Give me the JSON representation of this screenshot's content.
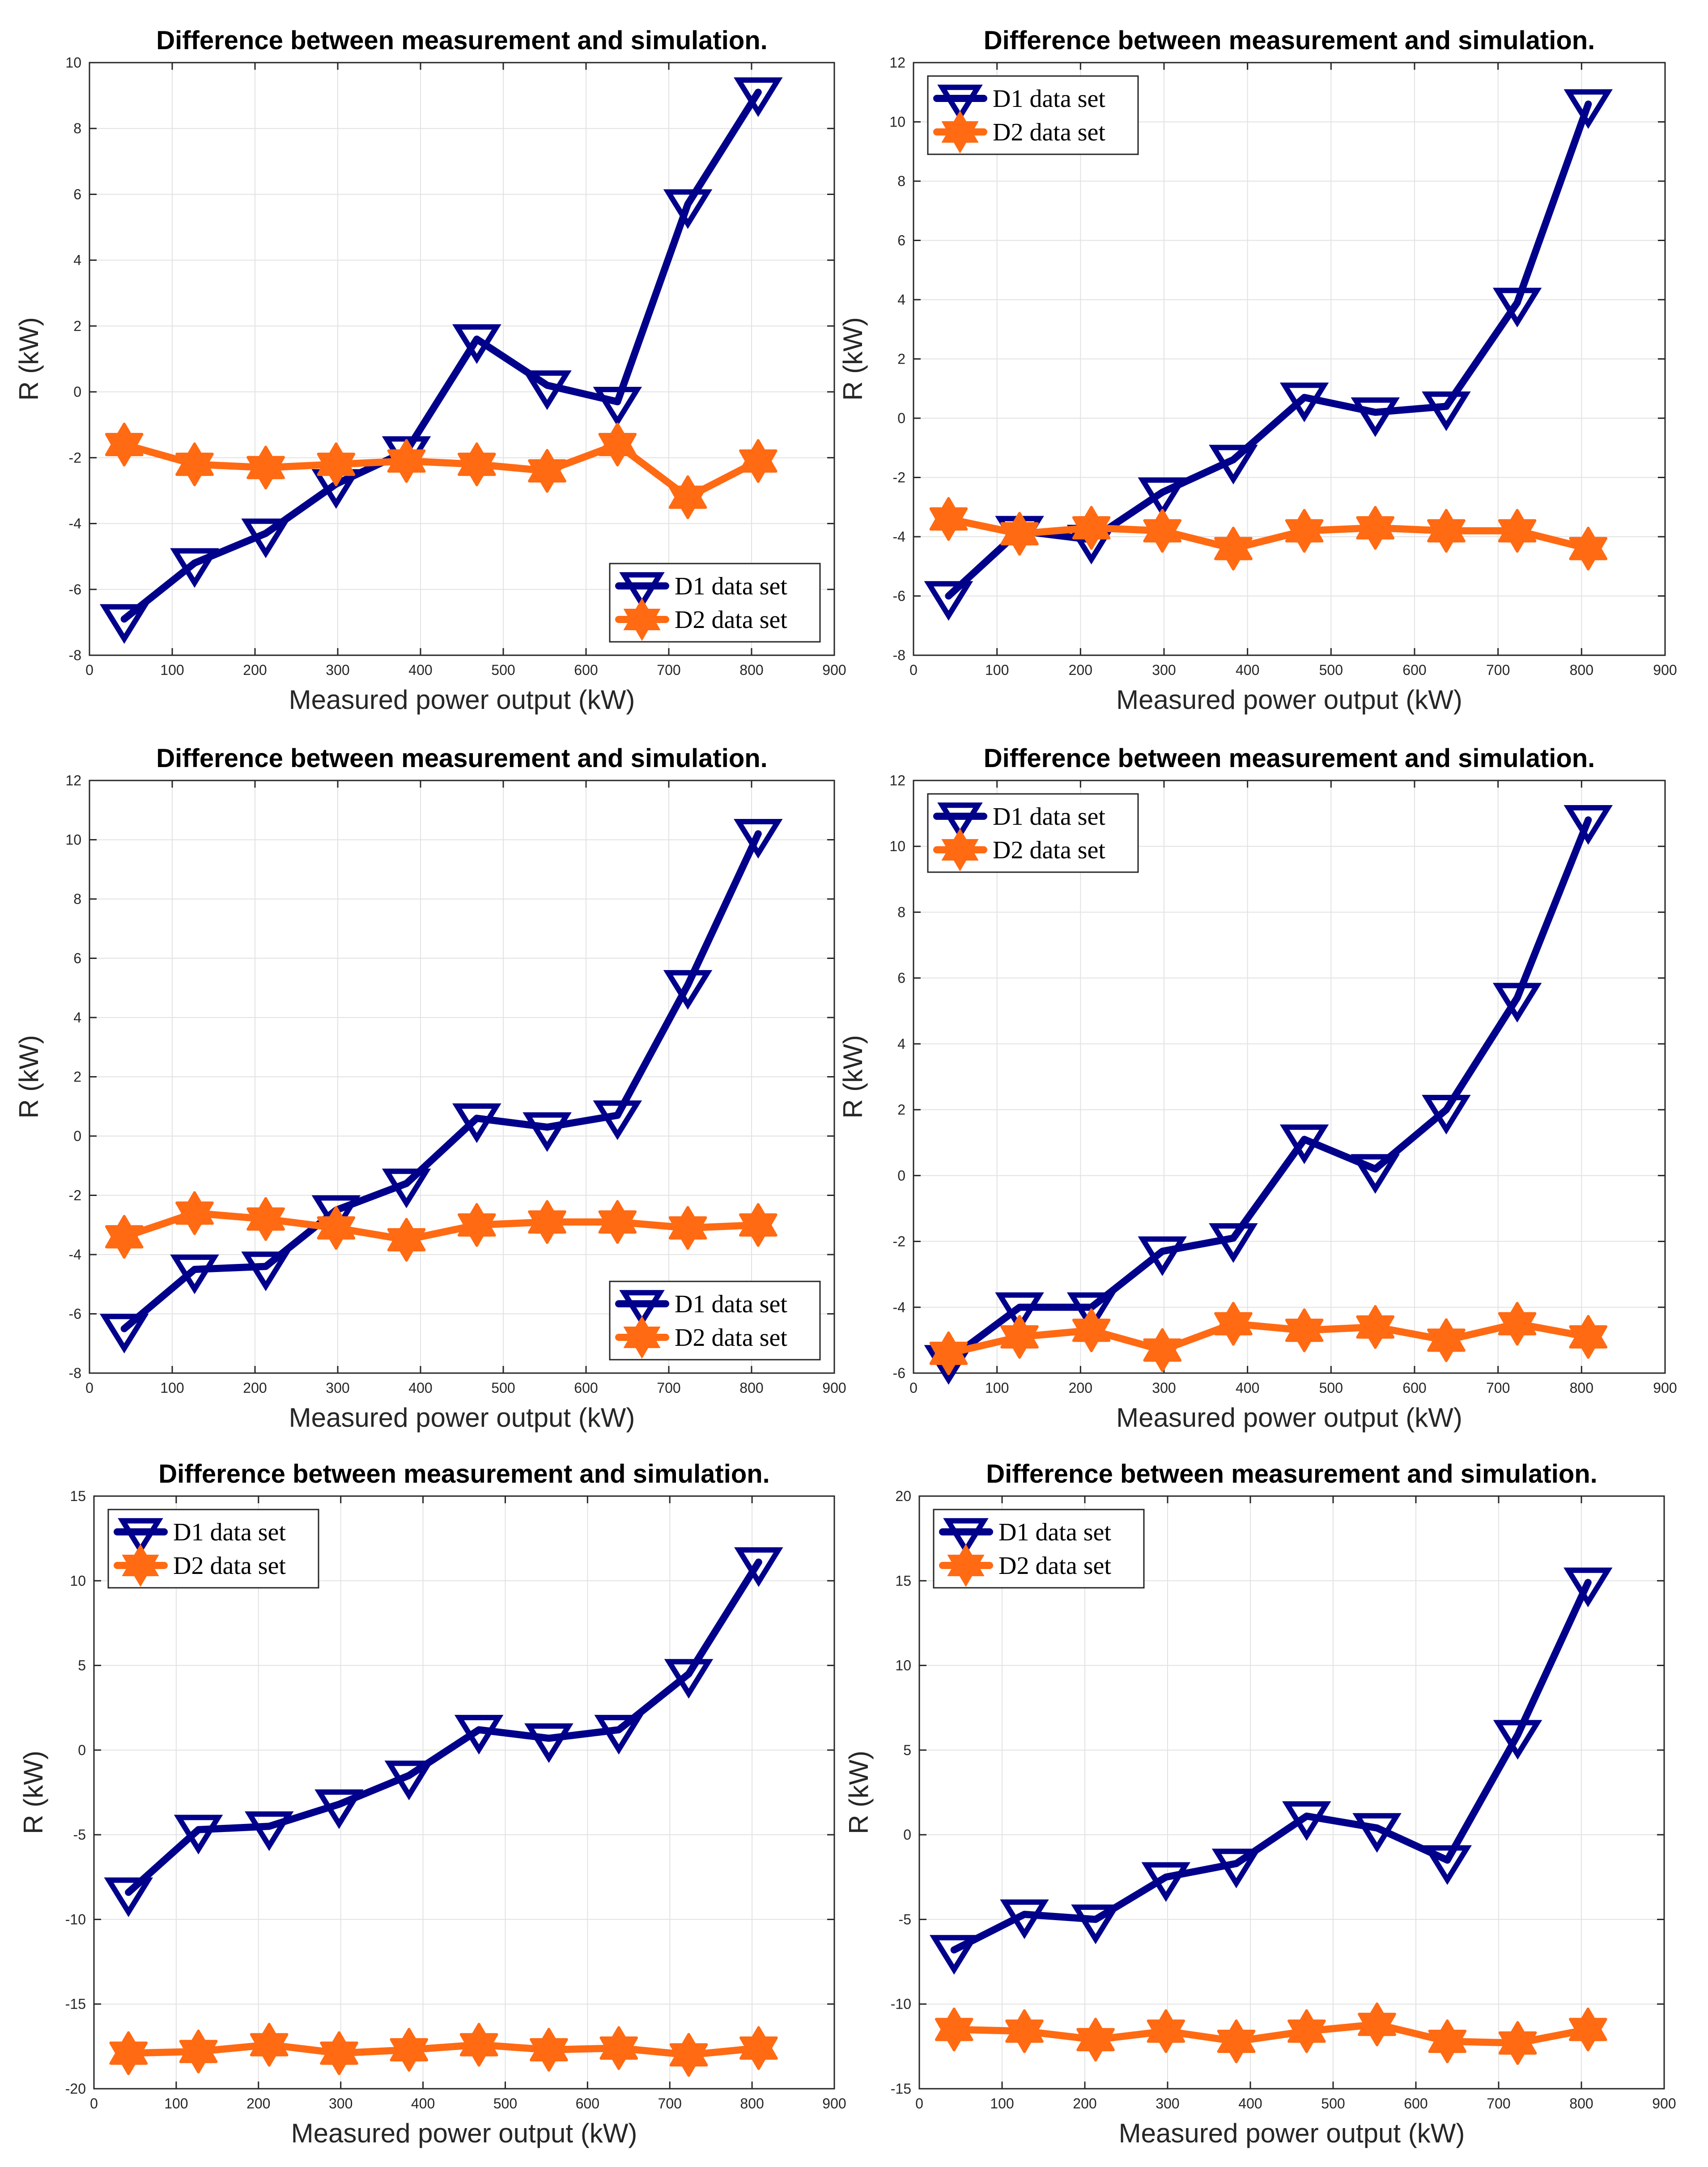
{
  "figure": {
    "background": "#ffffff"
  },
  "colors": {
    "d1": "#00008B",
    "d2": "#FF6A13",
    "grid": "#e2e2e2",
    "axis": "#262626"
  },
  "chart_data": [
    {
      "type": "line",
      "title": "Difference between measurement and simulation.",
      "xlabel": "Measured power output (kW)",
      "ylabel": "R (kW)",
      "xlim": [
        0,
        900
      ],
      "ylim": [
        -8,
        10
      ],
      "xticks": [
        0,
        100,
        200,
        300,
        400,
        500,
        600,
        700,
        800,
        900
      ],
      "yticks": [
        -8,
        -6,
        -4,
        -2,
        0,
        2,
        4,
        6,
        8,
        10
      ],
      "legend_position": "bottom-right",
      "series": [
        {
          "name": "D1 data set",
          "marker": "triangle-down",
          "x": [
            42,
            127,
            213,
            298,
            383,
            468,
            553,
            638,
            723,
            808
          ],
          "values": [
            -6.9,
            -5.2,
            -4.3,
            -2.8,
            -1.8,
            1.6,
            0.2,
            -0.3,
            5.7,
            9.1
          ]
        },
        {
          "name": "D2 data set",
          "marker": "hexagram",
          "x": [
            42,
            127,
            213,
            298,
            383,
            468,
            553,
            638,
            723,
            808
          ],
          "values": [
            -1.6,
            -2.2,
            -2.3,
            -2.2,
            -2.1,
            -2.2,
            -2.4,
            -1.6,
            -3.2,
            -2.1
          ]
        }
      ]
    },
    {
      "type": "line",
      "title": "Difference between measurement and simulation.",
      "xlabel": "Measured power output (kW)",
      "ylabel": "R (kW)",
      "xlim": [
        0,
        900
      ],
      "ylim": [
        -8,
        12
      ],
      "xticks": [
        0,
        100,
        200,
        300,
        400,
        500,
        600,
        700,
        800,
        900
      ],
      "yticks": [
        -8,
        -6,
        -4,
        -2,
        0,
        2,
        4,
        6,
        8,
        10,
        12
      ],
      "legend_position": "top-left",
      "series": [
        {
          "name": "D1 data set",
          "marker": "triangle-down",
          "x": [
            42,
            127,
            213,
            298,
            383,
            468,
            553,
            638,
            723,
            808
          ],
          "values": [
            -6.0,
            -3.8,
            -4.1,
            -2.5,
            -1.4,
            0.7,
            0.2,
            0.4,
            3.9,
            10.6
          ]
        },
        {
          "name": "D2 data set",
          "marker": "hexagram",
          "x": [
            42,
            127,
            213,
            298,
            383,
            468,
            553,
            638,
            723,
            808
          ],
          "values": [
            -3.4,
            -3.9,
            -3.7,
            -3.8,
            -4.4,
            -3.8,
            -3.7,
            -3.8,
            -3.8,
            -4.4
          ]
        }
      ]
    },
    {
      "type": "line",
      "title": "Difference between measurement and simulation.",
      "xlabel": "Measured power output (kW)",
      "ylabel": "R (kW)",
      "xlim": [
        0,
        900
      ],
      "ylim": [
        -8,
        12
      ],
      "xticks": [
        0,
        100,
        200,
        300,
        400,
        500,
        600,
        700,
        800,
        900
      ],
      "yticks": [
        -8,
        -6,
        -4,
        -2,
        0,
        2,
        4,
        6,
        8,
        10,
        12
      ],
      "legend_position": "bottom-right",
      "series": [
        {
          "name": "D1 data set",
          "marker": "triangle-down",
          "x": [
            42,
            127,
            213,
            298,
            383,
            468,
            553,
            638,
            723,
            808
          ],
          "values": [
            -6.5,
            -4.5,
            -4.4,
            -2.5,
            -1.6,
            0.6,
            0.3,
            0.7,
            5.1,
            10.2
          ]
        },
        {
          "name": "D2 data set",
          "marker": "hexagram",
          "x": [
            42,
            127,
            213,
            298,
            383,
            468,
            553,
            638,
            723,
            808
          ],
          "values": [
            -3.4,
            -2.6,
            -2.8,
            -3.1,
            -3.5,
            -3.0,
            -2.9,
            -2.9,
            -3.1,
            -3.0
          ]
        }
      ]
    },
    {
      "type": "line",
      "title": "Difference between measurement and simulation.",
      "xlabel": "Measured power output (kW)",
      "ylabel": "R (kW)",
      "xlim": [
        0,
        900
      ],
      "ylim": [
        -6,
        12
      ],
      "xticks": [
        0,
        100,
        200,
        300,
        400,
        500,
        600,
        700,
        800,
        900
      ],
      "yticks": [
        -6,
        -4,
        -2,
        0,
        2,
        4,
        6,
        8,
        10,
        12
      ],
      "legend_position": "top-left",
      "series": [
        {
          "name": "D1 data set",
          "marker": "triangle-down",
          "x": [
            42,
            127,
            213,
            298,
            383,
            468,
            553,
            638,
            723,
            808
          ],
          "values": [
            -5.6,
            -4.0,
            -4.0,
            -2.3,
            -1.9,
            1.1,
            0.2,
            2.0,
            5.4,
            10.8
          ]
        },
        {
          "name": "D2 data set",
          "marker": "hexagram",
          "x": [
            42,
            127,
            213,
            298,
            383,
            468,
            553,
            638,
            723,
            808
          ],
          "values": [
            -5.4,
            -4.9,
            -4.7,
            -5.3,
            -4.5,
            -4.7,
            -4.6,
            -5.0,
            -4.5,
            -4.9
          ]
        }
      ]
    },
    {
      "type": "line",
      "title": "Difference between measurement and simulation.",
      "xlabel": "Measured power output (kW)",
      "ylabel": "R (kW)",
      "xlim": [
        0,
        900
      ],
      "ylim": [
        -20,
        15
      ],
      "xticks": [
        0,
        100,
        200,
        300,
        400,
        500,
        600,
        700,
        800,
        900
      ],
      "yticks": [
        -20,
        -15,
        -10,
        -5,
        0,
        5,
        10,
        15
      ],
      "legend_position": "top-left",
      "series": [
        {
          "name": "D1 data set",
          "marker": "triangle-down",
          "x": [
            42,
            127,
            213,
            298,
            383,
            468,
            553,
            638,
            723,
            808
          ],
          "values": [
            -8.4,
            -4.7,
            -4.5,
            -3.2,
            -1.5,
            1.2,
            0.7,
            1.2,
            4.5,
            11.1
          ]
        },
        {
          "name": "D2 data set",
          "marker": "hexagram",
          "x": [
            42,
            127,
            213,
            298,
            383,
            468,
            553,
            638,
            723,
            808
          ],
          "values": [
            -17.9,
            -17.8,
            -17.4,
            -17.9,
            -17.7,
            -17.4,
            -17.7,
            -17.6,
            -18.0,
            -17.6
          ]
        }
      ]
    },
    {
      "type": "line",
      "title": "Difference between measurement and simulation.",
      "xlabel": "Measured power output (kW)",
      "ylabel": "R (kW)",
      "xlim": [
        0,
        900
      ],
      "ylim": [
        -15,
        20
      ],
      "xticks": [
        0,
        100,
        200,
        300,
        400,
        500,
        600,
        700,
        800,
        900
      ],
      "yticks": [
        -15,
        -10,
        -5,
        0,
        5,
        10,
        15,
        20
      ],
      "legend_position": "top-left",
      "series": [
        {
          "name": "D1 data set",
          "marker": "triangle-down",
          "x": [
            42,
            127,
            213,
            298,
            383,
            468,
            553,
            638,
            723,
            808
          ],
          "values": [
            -6.8,
            -4.7,
            -5.0,
            -2.5,
            -1.7,
            1.1,
            0.4,
            -1.5,
            5.9,
            14.9
          ]
        },
        {
          "name": "D2 data set",
          "marker": "hexagram",
          "x": [
            42,
            127,
            213,
            298,
            383,
            468,
            553,
            638,
            723,
            808
          ],
          "values": [
            -11.5,
            -11.6,
            -12.1,
            -11.6,
            -12.2,
            -11.6,
            -11.2,
            -12.2,
            -12.3,
            -11.5
          ]
        }
      ]
    }
  ]
}
